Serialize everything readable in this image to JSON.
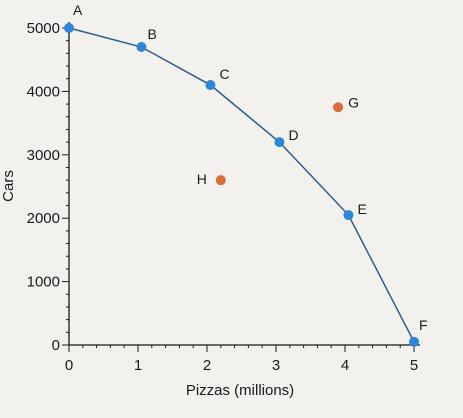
{
  "chart_data": {
    "type": "line",
    "title": "",
    "xlabel": "Pizzas (millions)",
    "ylabel": "Cars",
    "xlim": [
      0,
      5
    ],
    "ylim": [
      0,
      5000
    ],
    "x_ticks": [
      0,
      1,
      2,
      3,
      4,
      5
    ],
    "y_ticks": [
      0,
      1000,
      2000,
      3000,
      4000,
      5000
    ],
    "x_tick_labels": [
      "0",
      "1",
      "2",
      "3",
      "4",
      "5"
    ],
    "y_tick_labels": [
      "0",
      "1000",
      "2000",
      "3000",
      "4000",
      "5000"
    ],
    "grid": false,
    "colors": {
      "curve": "#2b5d8c",
      "frontier_point": "#2f86d6",
      "other_point": "#dc6a3b"
    },
    "series": [
      {
        "points": [
          {
            "label": "A",
            "x": 0,
            "y": 5000
          },
          {
            "label": "B",
            "x": 1.05,
            "y": 4700
          },
          {
            "label": "C",
            "x": 2.05,
            "y": 4100
          },
          {
            "label": "D",
            "x": 3.05,
            "y": 3200
          },
          {
            "label": "E",
            "x": 4.05,
            "y": 2050
          },
          {
            "label": "F",
            "x": 5,
            "y": 50
          }
        ]
      }
    ],
    "extra_points": [
      {
        "label": "G",
        "x": 3.9,
        "y": 3750
      },
      {
        "label": "H",
        "x": 2.2,
        "y": 2600
      }
    ]
  }
}
